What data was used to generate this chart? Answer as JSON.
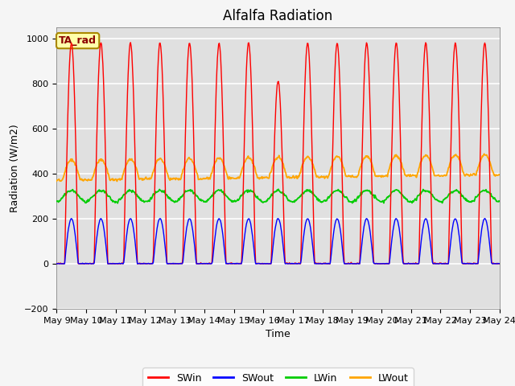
{
  "title": "Alfalfa Radiation",
  "ylabel": "Radiation (W/m2)",
  "xlabel": "Time",
  "ylim": [
    -200,
    1050
  ],
  "x_tick_labels": [
    "May 9",
    "May 10",
    "May 11",
    "May 12",
    "May 13",
    "May 14",
    "May 15",
    "May 16",
    "May 17",
    "May 18",
    "May 19",
    "May 20",
    "May 21",
    "May 22",
    "May 23",
    "May 24"
  ],
  "colors": {
    "SWin": "#ff0000",
    "SWout": "#0000ff",
    "LWin": "#00cc00",
    "LWout": "#ffa500"
  },
  "legend_label": "TA_rad",
  "plot_bg_color": "#e0e0e0",
  "fig_bg_color": "#f5f5f5",
  "grid_color": "#ffffff",
  "title_fontsize": 12,
  "axis_fontsize": 9,
  "tick_fontsize": 8
}
